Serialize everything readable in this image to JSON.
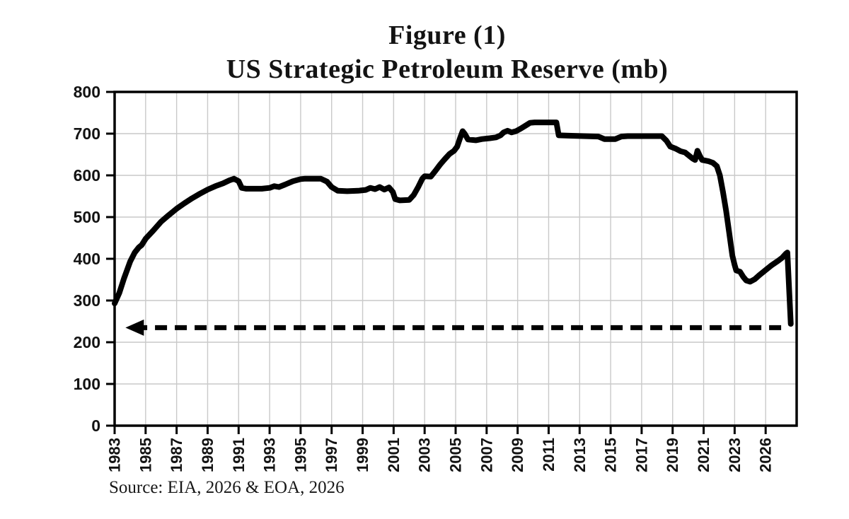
{
  "figure": {
    "title_line1": "Figure (1)",
    "title_line2": "US Strategic Petroleum Reserve (mb)",
    "source": "Source: EIA, 2026 & EOA, 2026"
  },
  "style": {
    "background": "#ffffff",
    "grid_color": "#c9c9c9",
    "axis_color": "#000000",
    "line_color": "#000000",
    "text_color": "#131313"
  },
  "chart_data": {
    "type": "line",
    "title": "US Strategic Petroleum Reserve (mb)",
    "xlabel": "",
    "ylabel": "",
    "grid": true,
    "x_axis": {
      "unit": "year",
      "min": 1983,
      "max": 2027,
      "tick_step_years": 2,
      "tick_labels": [
        "1983",
        "1985",
        "1987",
        "1989",
        "1991",
        "1993",
        "1995",
        "1997",
        "1999",
        "2001",
        "2003",
        "2005",
        "2007",
        "2009",
        "2011",
        "2013",
        "2015",
        "2017",
        "2019",
        "2021",
        "2023",
        "2026"
      ]
    },
    "y_axis": {
      "min": 0,
      "max": 800,
      "tick_step": 100,
      "tick_labels": [
        "0",
        "100",
        "200",
        "300",
        "400",
        "500",
        "600",
        "700",
        "800"
      ]
    },
    "series": [
      {
        "name": "US Strategic Petroleum Reserve (mb)",
        "color": "#000000",
        "points": [
          [
            1983.0,
            293
          ],
          [
            1983.3,
            318
          ],
          [
            1983.6,
            352
          ],
          [
            1984.0,
            393
          ],
          [
            1984.3,
            415
          ],
          [
            1984.55,
            427
          ],
          [
            1984.75,
            433
          ],
          [
            1985.0,
            448
          ],
          [
            1985.5,
            468
          ],
          [
            1986.0,
            489
          ],
          [
            1986.5,
            505
          ],
          [
            1987.0,
            520
          ],
          [
            1987.5,
            533
          ],
          [
            1988.0,
            545
          ],
          [
            1988.5,
            556
          ],
          [
            1989.0,
            566
          ],
          [
            1989.5,
            574
          ],
          [
            1990.0,
            581
          ],
          [
            1990.4,
            588
          ],
          [
            1990.7,
            592
          ],
          [
            1991.0,
            586
          ],
          [
            1991.2,
            570
          ],
          [
            1991.5,
            568
          ],
          [
            1992.5,
            568
          ],
          [
            1993.0,
            570
          ],
          [
            1993.3,
            574
          ],
          [
            1993.6,
            572
          ],
          [
            1994.0,
            578
          ],
          [
            1994.5,
            586
          ],
          [
            1995.0,
            591
          ],
          [
            1995.3,
            592
          ],
          [
            1996.3,
            592
          ],
          [
            1996.7,
            585
          ],
          [
            1997.0,
            572
          ],
          [
            1997.4,
            563
          ],
          [
            1998.0,
            562
          ],
          [
            1998.7,
            563
          ],
          [
            1999.2,
            565
          ],
          [
            1999.5,
            570
          ],
          [
            1999.8,
            567
          ],
          [
            2000.1,
            572
          ],
          [
            2000.4,
            566
          ],
          [
            2000.7,
            571
          ],
          [
            2000.95,
            560
          ],
          [
            2001.1,
            543
          ],
          [
            2001.4,
            540
          ],
          [
            2002.0,
            541
          ],
          [
            2002.3,
            553
          ],
          [
            2002.6,
            573
          ],
          [
            2002.85,
            592
          ],
          [
            2003.0,
            598
          ],
          [
            2003.4,
            597
          ],
          [
            2003.7,
            611
          ],
          [
            2004.0,
            626
          ],
          [
            2004.3,
            639
          ],
          [
            2004.6,
            651
          ],
          [
            2004.9,
            659
          ],
          [
            2005.1,
            669
          ],
          [
            2005.3,
            691
          ],
          [
            2005.45,
            706
          ],
          [
            2005.6,
            699
          ],
          [
            2005.8,
            686
          ],
          [
            2006.3,
            684
          ],
          [
            2006.7,
            687
          ],
          [
            2007.2,
            689
          ],
          [
            2007.6,
            691
          ],
          [
            2007.9,
            696
          ],
          [
            2008.1,
            703
          ],
          [
            2008.35,
            707
          ],
          [
            2008.6,
            703
          ],
          [
            2008.9,
            706
          ],
          [
            2009.2,
            712
          ],
          [
            2009.5,
            719
          ],
          [
            2009.8,
            726
          ],
          [
            2010.1,
            727
          ],
          [
            2011.5,
            727
          ],
          [
            2011.65,
            696
          ],
          [
            2012.3,
            695
          ],
          [
            2014.2,
            693
          ],
          [
            2014.6,
            687
          ],
          [
            2015.3,
            687
          ],
          [
            2015.7,
            693
          ],
          [
            2016.1,
            694
          ],
          [
            2018.3,
            694
          ],
          [
            2018.6,
            683
          ],
          [
            2018.85,
            669
          ],
          [
            2019.2,
            664
          ],
          [
            2019.5,
            658
          ],
          [
            2019.8,
            655
          ],
          [
            2020.1,
            646
          ],
          [
            2020.3,
            640
          ],
          [
            2020.45,
            637
          ],
          [
            2020.6,
            659
          ],
          [
            2020.75,
            647
          ],
          [
            2020.9,
            637
          ],
          [
            2021.3,
            634
          ],
          [
            2021.6,
            630
          ],
          [
            2021.85,
            622
          ],
          [
            2022.05,
            600
          ],
          [
            2022.25,
            560
          ],
          [
            2022.45,
            515
          ],
          [
            2022.65,
            462
          ],
          [
            2022.85,
            408
          ],
          [
            2023.0,
            385
          ],
          [
            2023.1,
            372
          ],
          [
            2023.35,
            369
          ],
          [
            2023.55,
            357
          ],
          [
            2023.75,
            348
          ],
          [
            2024.0,
            345
          ],
          [
            2024.3,
            351
          ],
          [
            2024.6,
            361
          ],
          [
            2025.0,
            373
          ],
          [
            2025.4,
            385
          ],
          [
            2025.8,
            395
          ],
          [
            2026.05,
            402
          ],
          [
            2026.3,
            412
          ],
          [
            2026.4,
            415
          ],
          [
            2026.62,
            244
          ]
        ]
      }
    ],
    "annotation_arrow": {
      "value": 235,
      "from_year": 2026.0,
      "to_year": 1983.7,
      "direction": "left",
      "style": "dashed",
      "color": "#000000"
    }
  }
}
